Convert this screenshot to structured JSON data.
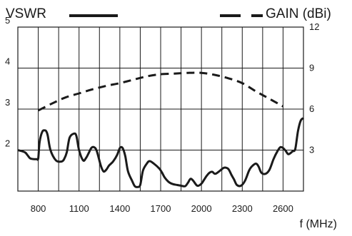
{
  "chart_data": {
    "type": "line",
    "legend": {
      "left_label": "VSWR",
      "right_label": "GAIN (dBi)",
      "placement": "top"
    },
    "x_axis": {
      "label": "f (MHz)",
      "ticks": [
        800,
        1100,
        1400,
        1700,
        2000,
        2300,
        2600
      ],
      "range": [
        650,
        2750
      ],
      "grid": true
    },
    "y_left": {
      "ticks": [
        2,
        3,
        4,
        5
      ],
      "range": [
        1,
        5
      ],
      "grid": true
    },
    "y_right": {
      "ticks": [
        3,
        6,
        9,
        12
      ],
      "range": [
        0,
        12
      ]
    },
    "series": [
      {
        "name": "VSWR",
        "axis": "left",
        "style": "solid",
        "color": "#1a1a1a",
        "x": [
          650,
          700,
          720,
          740,
          770,
          790,
          800,
          810,
          830,
          850,
          860,
          870,
          890,
          930,
          970,
          990,
          1010,
          1030,
          1060,
          1080,
          1100,
          1130,
          1150,
          1170,
          1190,
          1210,
          1230,
          1260,
          1280,
          1300,
          1320,
          1350,
          1380,
          1400,
          1420,
          1440,
          1460,
          1490,
          1510,
          1530,
          1550,
          1570,
          1600,
          1620,
          1650,
          1690,
          1710,
          1730,
          1760,
          1790,
          1820,
          1850,
          1880,
          1900,
          1920,
          1940,
          1970,
          2000,
          2020,
          2040,
          2060,
          2080,
          2100,
          2130,
          2160,
          2180,
          2200,
          2220,
          2240,
          2260,
          2290,
          2320,
          2350,
          2370,
          2400,
          2420,
          2440,
          2470,
          2500,
          2530,
          2560,
          2580,
          2600,
          2620,
          2640,
          2670,
          2690,
          2710,
          2730,
          2750
        ],
        "y": [
          2.0,
          1.95,
          1.88,
          1.8,
          1.78,
          1.78,
          1.8,
          2.2,
          2.45,
          2.48,
          2.45,
          2.35,
          2.0,
          1.75,
          1.72,
          1.78,
          1.95,
          2.3,
          2.4,
          2.35,
          2.0,
          1.75,
          1.8,
          1.92,
          2.05,
          2.07,
          1.98,
          1.62,
          1.48,
          1.52,
          1.62,
          1.72,
          1.88,
          2.05,
          2.05,
          1.85,
          1.48,
          1.25,
          1.12,
          1.1,
          1.15,
          1.5,
          1.68,
          1.73,
          1.67,
          1.55,
          1.45,
          1.33,
          1.22,
          1.17,
          1.15,
          1.13,
          1.12,
          1.2,
          1.3,
          1.25,
          1.13,
          1.18,
          1.28,
          1.38,
          1.45,
          1.47,
          1.42,
          1.48,
          1.56,
          1.57,
          1.53,
          1.4,
          1.28,
          1.15,
          1.13,
          1.25,
          1.5,
          1.6,
          1.67,
          1.6,
          1.45,
          1.42,
          1.52,
          1.78,
          1.98,
          2.07,
          2.05,
          1.98,
          1.9,
          1.97,
          2.03,
          2.47,
          2.72,
          2.78
        ]
      },
      {
        "name": "GAIN (dBi)",
        "axis": "right",
        "style": "dashed",
        "color": "#1a1a1a",
        "x": [
          800,
          900,
          1000,
          1100,
          1200,
          1300,
          1400,
          1500,
          1600,
          1700,
          1800,
          1900,
          2000,
          2100,
          2200,
          2300,
          2400,
          2500,
          2600
        ],
        "y": [
          5.9,
          6.4,
          6.85,
          7.15,
          7.45,
          7.7,
          7.9,
          8.15,
          8.4,
          8.55,
          8.6,
          8.65,
          8.65,
          8.5,
          8.25,
          7.9,
          7.3,
          6.75,
          6.2
        ]
      }
    ]
  }
}
